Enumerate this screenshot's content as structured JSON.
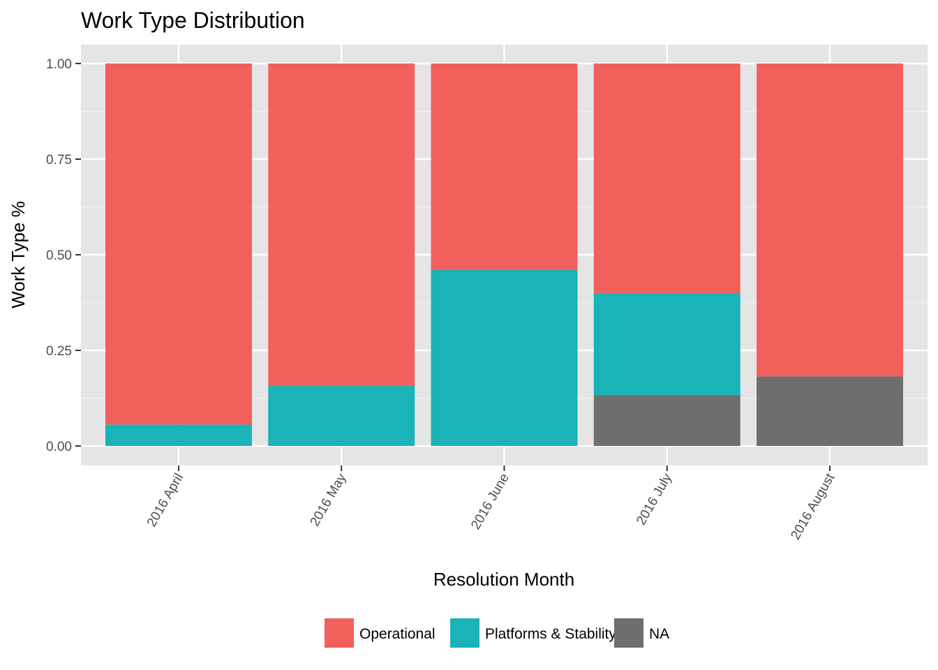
{
  "chart_data": {
    "type": "bar",
    "stacked": true,
    "title": "Work Type Distribution",
    "xlabel": "Resolution Month",
    "ylabel": "Work Type %",
    "ylim": [
      0,
      1
    ],
    "yticks": [
      "0.00",
      "0.25",
      "0.50",
      "0.75",
      "1.00"
    ],
    "categories": [
      "2016 April",
      "2016 May",
      "2016 June",
      "2016 July",
      "2016 August"
    ],
    "series": [
      {
        "name": "NA",
        "color": "#6e6e6e",
        "values": [
          0,
          0,
          0,
          0.133,
          0.182
        ]
      },
      {
        "name": "Platforms & Stability",
        "color": "#19b3b8",
        "values": [
          0.056,
          0.158,
          0.46,
          0.267,
          0
        ]
      },
      {
        "name": "Operational",
        "color": "#f2605c",
        "values": [
          0.944,
          0.842,
          0.54,
          0.6,
          0.818
        ]
      }
    ],
    "legend_order": [
      "Operational",
      "Platforms & Stability",
      "NA"
    ],
    "legend_position": "bottom",
    "grid": true,
    "panel_background": "#e5e5e5"
  }
}
